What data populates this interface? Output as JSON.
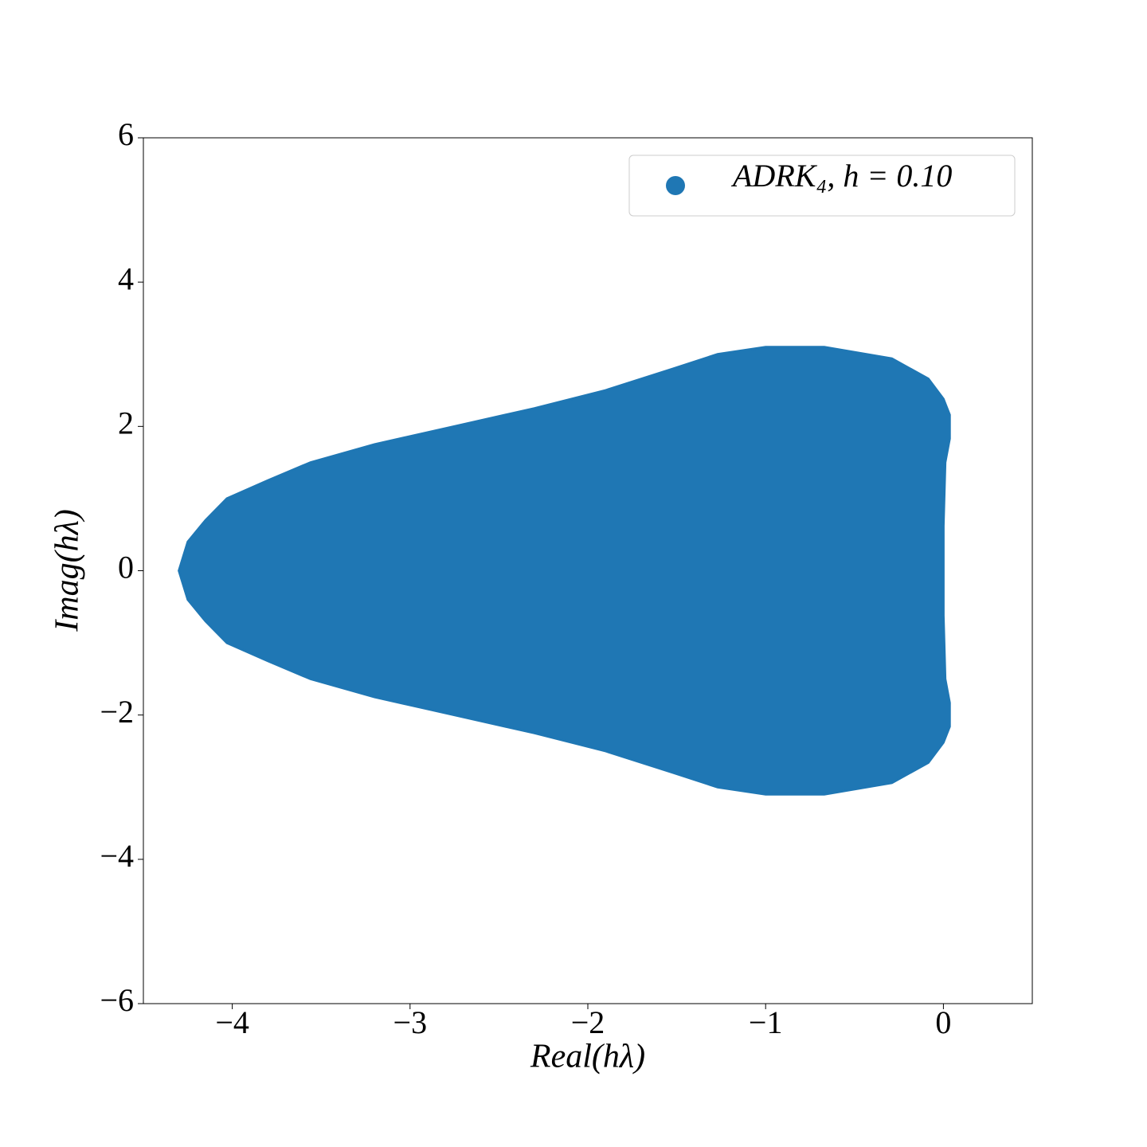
{
  "chart_data": {
    "type": "region",
    "xlabel": "Real(hλ)",
    "ylabel": "Imag(hλ)",
    "xlim": [
      -4.5,
      0.5
    ],
    "ylim": [
      -6,
      6
    ],
    "xticks": [
      {
        "value": -4,
        "label": "−4"
      },
      {
        "value": -3,
        "label": "−3"
      },
      {
        "value": -2,
        "label": "−2"
      },
      {
        "value": -1,
        "label": "−1"
      },
      0
    ],
    "yticks": [
      {
        "value": -6,
        "label": "−6"
      },
      {
        "value": -4,
        "label": "−4"
      },
      {
        "value": -2,
        "label": "−2"
      },
      0,
      2,
      4,
      6
    ],
    "legend": "upper right",
    "series": [
      {
        "name": "ADRK₄, h = 0.10",
        "color": "#1f77b4",
        "x": [
          -4.3,
          -4.25,
          -4.15,
          -4.03,
          -3.8,
          -3.56,
          -3.2,
          -2.75,
          -2.3,
          -1.9,
          -1.52,
          -1.27,
          -1.0,
          -0.67,
          -0.29,
          -0.085,
          0.0,
          0.035,
          0.035,
          0.01,
          0.0,
          0.0,
          0.0,
          0.01,
          0.035,
          0.035,
          0.0,
          -0.085,
          -0.29,
          -0.67,
          -1.0,
          -1.27,
          -1.52,
          -1.9,
          -2.3,
          -2.75,
          -3.2,
          -3.56,
          -3.8,
          -4.03,
          -4.15,
          -4.25
        ],
        "y": [
          0,
          0.4,
          0.7,
          1.0,
          1.25,
          1.5,
          1.75,
          2.0,
          2.25,
          2.5,
          2.8,
          3.0,
          3.1,
          3.1,
          2.94,
          2.66,
          2.38,
          2.16,
          1.83,
          1.5,
          0.62,
          0,
          -0.62,
          -1.5,
          -1.83,
          -2.16,
          -2.38,
          -2.66,
          -2.94,
          -3.1,
          -3.1,
          -3.0,
          -2.8,
          -2.5,
          -2.25,
          -2.0,
          -1.75,
          -1.5,
          -1.25,
          -1.0,
          -0.7,
          -0.4
        ]
      }
    ]
  }
}
